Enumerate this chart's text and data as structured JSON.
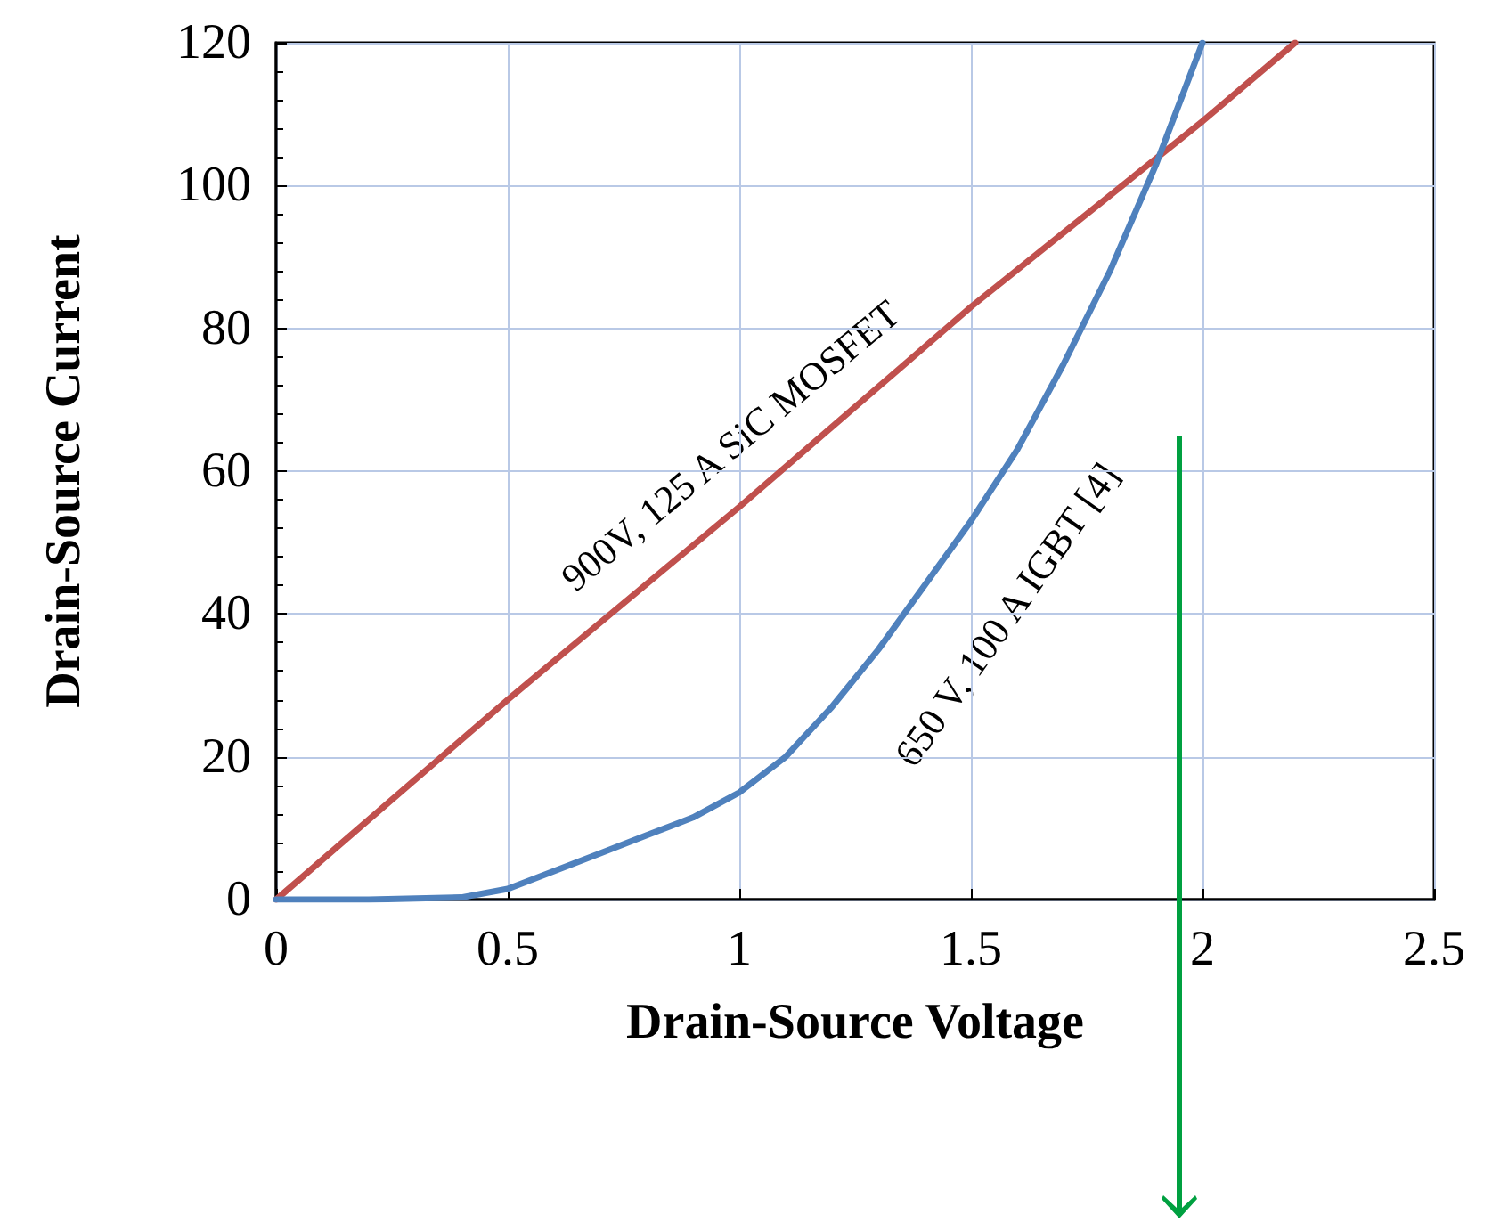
{
  "chart_data": {
    "type": "line",
    "xlabel": "Drain-Source Voltage",
    "ylabel": "Drain-Source Current",
    "xlim": [
      0,
      2.5
    ],
    "xticks": [
      0,
      0.5,
      1,
      1.5,
      2,
      2.5
    ],
    "ylim": [
      0,
      120
    ],
    "yticks": [
      0,
      20,
      40,
      60,
      80,
      100,
      120
    ],
    "grid": true,
    "marker": "none",
    "line_style": "solid",
    "series": [
      {
        "color": "#c0504d",
        "x": [
          0,
          0.5,
          1,
          1.5,
          2,
          2.2
        ],
        "values": [
          0,
          28,
          55,
          83,
          109,
          120
        ]
      },
      {
        "color": "#4f81bd",
        "x": [
          0,
          0.2,
          0.4,
          0.5,
          0.6,
          0.7,
          0.8,
          0.9,
          1.0,
          1.1,
          1.2,
          1.3,
          1.4,
          1.5,
          1.6,
          1.7,
          1.8,
          1.9,
          2.0
        ],
        "values": [
          0,
          0,
          0.3,
          1.5,
          4,
          6.5,
          9,
          11.5,
          15,
          20,
          27,
          35,
          44,
          53,
          63,
          75,
          88,
          103,
          120
        ]
      }
    ],
    "annotations": [
      "900V, 125 A SiC MOSFET",
      "650 V, 100 A IGBT [4]"
    ]
  }
}
